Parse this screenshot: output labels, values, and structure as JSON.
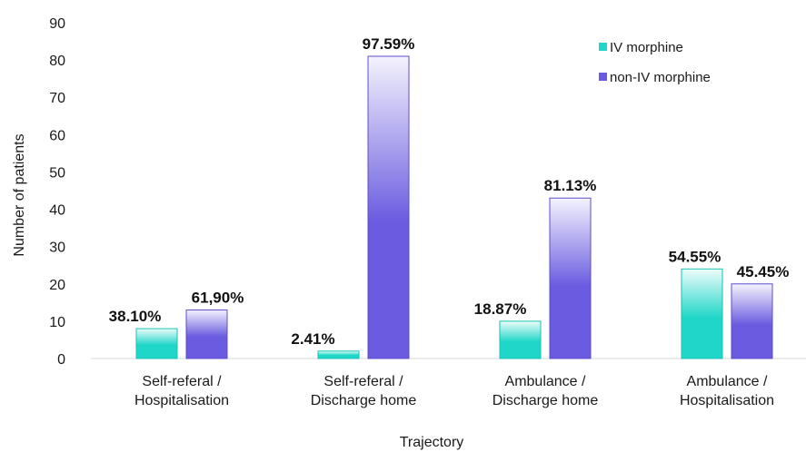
{
  "chart_data": {
    "type": "bar",
    "xlabel": "Trajectory",
    "ylabel": "Number of patients",
    "ylim": [
      0,
      90
    ],
    "yticks": [
      0,
      10,
      20,
      30,
      40,
      50,
      60,
      70,
      80,
      90
    ],
    "categories": [
      [
        "Self-referal /",
        "Hospitalisation"
      ],
      [
        "Self-referal /",
        "Discharge home"
      ],
      [
        "Ambulance /",
        "Discharge home"
      ],
      [
        "Ambulance /",
        "Hospitalisation"
      ]
    ],
    "series": [
      {
        "name": "IV morphine",
        "color": "#1fd6c8",
        "values": [
          8,
          2,
          10,
          24
        ],
        "labels": [
          "38.10%",
          "2.41%",
          "18.87%",
          "54.55%"
        ]
      },
      {
        "name": "non-IV morphine",
        "color": "#6a5be0",
        "values": [
          13,
          81,
          43,
          20
        ],
        "labels": [
          "61,90%",
          "97.59%",
          "81.13%",
          "45.45%"
        ]
      }
    ],
    "legend": "top-right",
    "grid": false
  }
}
